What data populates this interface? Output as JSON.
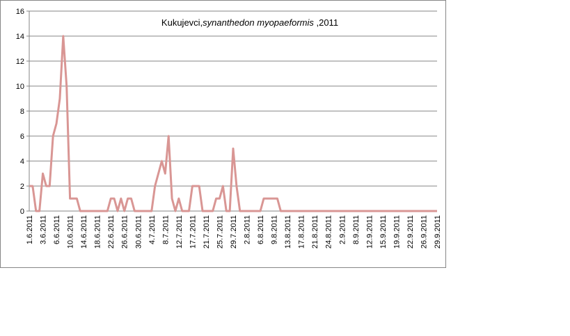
{
  "chart_data": {
    "type": "line",
    "title": [
      "Kukujevci,",
      "synanthedon myopaeformis",
      " ,2011"
    ],
    "categories": [
      "1.6.2011",
      null,
      null,
      null,
      "3.6.2011",
      null,
      null,
      null,
      "6.6.2011",
      null,
      null,
      null,
      "10.6.2011",
      null,
      null,
      null,
      "14.6.2011",
      null,
      null,
      null,
      "18.6.2011",
      null,
      null,
      null,
      "22.6.2011",
      null,
      null,
      null,
      "26.6.2011",
      null,
      null,
      null,
      "30.6.2011",
      null,
      null,
      null,
      "4.7.2011",
      null,
      null,
      null,
      "8.7.2011",
      null,
      null,
      null,
      "12.7.2011",
      null,
      null,
      null,
      "17.7.2011",
      null,
      null,
      null,
      "21.7.2011",
      null,
      null,
      null,
      "25.7.2011",
      null,
      null,
      null,
      "29.7.2011",
      null,
      null,
      null,
      "2.8.2011",
      null,
      null,
      null,
      "6.8.2011",
      null,
      null,
      null,
      "9.8.2011",
      null,
      null,
      null,
      "13.8.2011",
      null,
      null,
      null,
      "17.8.2011",
      null,
      null,
      null,
      "21.8.2011",
      null,
      null,
      null,
      "24.8.2011",
      null,
      null,
      null,
      "2.9.2011",
      null,
      null,
      null,
      "8.9.2011",
      null,
      null,
      null,
      "12.9.2011",
      null,
      null,
      null,
      "15.9.2011",
      null,
      null,
      null,
      "19.9.2011",
      null,
      null,
      null,
      "22.9.2011",
      null,
      null,
      null,
      "26.9.2011",
      null,
      null,
      null,
      "29.9.2011"
    ],
    "values": [
      2,
      2,
      0,
      0,
      3,
      2,
      2,
      6,
      7,
      9,
      14,
      10,
      1,
      1,
      1,
      0,
      0,
      0,
      0,
      0,
      0,
      0,
      0,
      0,
      1,
      1,
      0,
      1,
      0,
      1,
      1,
      0,
      0,
      0,
      0,
      0,
      0,
      2,
      3,
      4,
      3,
      6,
      1,
      0,
      1,
      0,
      0,
      0,
      2,
      2,
      2,
      0,
      0,
      0,
      0,
      1,
      1,
      2,
      0,
      0,
      5,
      2,
      0,
      0,
      0,
      0,
      0,
      0,
      0,
      1,
      1,
      1,
      1,
      1,
      0,
      0,
      0,
      0,
      0,
      0,
      0,
      0,
      0,
      0,
      0,
      0,
      0,
      0,
      0,
      0,
      0,
      0,
      0,
      0,
      0,
      0,
      0,
      0,
      0,
      0,
      0,
      0,
      0,
      0,
      0,
      0,
      0,
      0,
      0,
      0,
      0,
      0,
      0,
      0,
      0,
      0,
      0,
      0,
      0,
      0,
      0
    ],
    "color": "#d99694",
    "ylim": [
      0,
      16
    ],
    "yticks": [
      0,
      2,
      4,
      6,
      8,
      10,
      12,
      14,
      16
    ],
    "grid": true
  }
}
